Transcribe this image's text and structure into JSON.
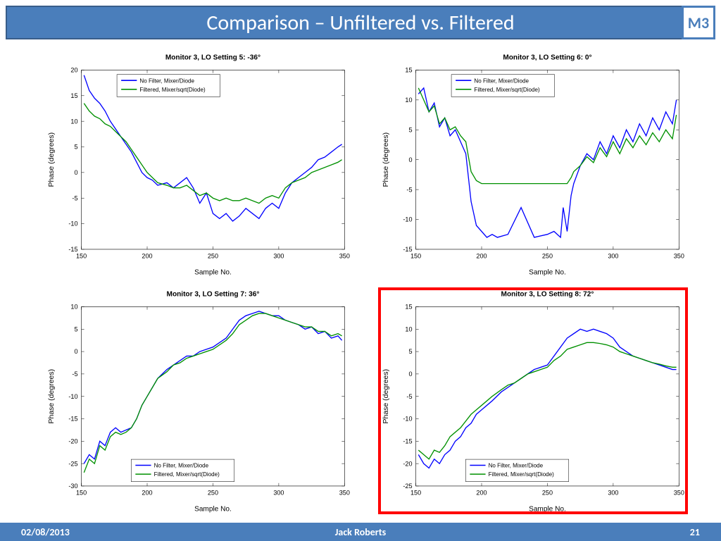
{
  "slide": {
    "title": "Comparison – Unfiltered vs. Filtered",
    "badge": "M3",
    "date": "02/08/2013",
    "author": "Jack Roberts",
    "page": "21"
  },
  "colors": {
    "header_bg": "#4a7ebb",
    "header_border": "#385d8a",
    "series_nofilter": "#0000ff",
    "series_filtered": "#009000",
    "highlight": "#ff0000",
    "axis": "#000000",
    "plot_bg": "#ffffff"
  },
  "common": {
    "xlabel": "Sample No.",
    "ylabel": "Phase (degrees)",
    "xlim": [
      150,
      350
    ],
    "xticks": [
      150,
      200,
      250,
      300,
      350
    ],
    "legend": [
      "No Filter, Mixer/Diode",
      "Filtered, Mixer/sqrt(Diode)"
    ],
    "line_width": 1.3,
    "title_fontsize": 10,
    "label_fontsize": 10,
    "tick_fontsize": 9,
    "legend_fontsize": 8
  },
  "panels": [
    {
      "title": "Monitor 3, LO Setting 5: -36°",
      "ylim": [
        -15,
        20
      ],
      "yticks": [
        -15,
        -10,
        -5,
        0,
        5,
        10,
        15,
        20
      ],
      "legend_pos": "top",
      "highlight": false,
      "series": [
        {
          "color": "#0000ff",
          "x": [
            152,
            156,
            160,
            164,
            168,
            172,
            176,
            180,
            184,
            188,
            192,
            196,
            200,
            204,
            208,
            215,
            220,
            225,
            230,
            235,
            240,
            245,
            250,
            255,
            260,
            265,
            270,
            275,
            280,
            285,
            290,
            295,
            300,
            305,
            310,
            315,
            320,
            325,
            330,
            335,
            340,
            345,
            348
          ],
          "y": [
            19,
            16,
            14.5,
            13.5,
            12,
            10,
            8.5,
            7,
            5.5,
            4,
            2,
            0,
            -1,
            -1.5,
            -2.5,
            -2,
            -3,
            -2,
            -1,
            -3,
            -6,
            -4,
            -8,
            -9,
            -8,
            -9.5,
            -8.5,
            -7,
            -8,
            -9,
            -7,
            -6,
            -7,
            -4,
            -2,
            -1,
            0,
            1,
            2.5,
            3,
            4,
            5,
            5.5
          ]
        },
        {
          "color": "#009000",
          "x": [
            152,
            156,
            160,
            164,
            168,
            172,
            176,
            180,
            184,
            188,
            192,
            196,
            200,
            204,
            208,
            215,
            220,
            225,
            230,
            235,
            240,
            245,
            250,
            255,
            260,
            265,
            270,
            275,
            280,
            285,
            290,
            295,
            300,
            305,
            310,
            315,
            320,
            325,
            330,
            335,
            340,
            345,
            348
          ],
          "y": [
            13.5,
            12,
            11,
            10.5,
            9.5,
            9,
            8,
            7,
            6,
            4.5,
            3,
            1.5,
            0,
            -1,
            -2,
            -2.5,
            -3,
            -3,
            -2.5,
            -3.5,
            -4.5,
            -4,
            -5,
            -5.5,
            -5,
            -5.5,
            -5.5,
            -5,
            -5.5,
            -6,
            -5,
            -4.5,
            -5,
            -3,
            -2,
            -1.5,
            -1,
            0,
            0.5,
            1,
            1.5,
            2,
            2.5
          ]
        }
      ]
    },
    {
      "title": "Monitor 3, LO Setting 6: 0°",
      "ylim": [
        -15,
        15
      ],
      "yticks": [
        -15,
        -10,
        -5,
        0,
        5,
        10,
        15
      ],
      "legend_pos": "top",
      "highlight": false,
      "series": [
        {
          "color": "#0000ff",
          "x": [
            152,
            156,
            160,
            164,
            168,
            172,
            176,
            180,
            184,
            188,
            192,
            196,
            200,
            204,
            208,
            212,
            220,
            230,
            240,
            250,
            255,
            260,
            262,
            265,
            268,
            270,
            275,
            280,
            285,
            290,
            295,
            300,
            305,
            310,
            315,
            320,
            325,
            330,
            335,
            340,
            345,
            348
          ],
          "y": [
            11,
            12,
            8,
            9.5,
            5.5,
            7,
            4,
            5,
            3,
            1,
            -7,
            -11,
            -12,
            -13,
            -12.5,
            -13,
            -12.5,
            -8,
            -13,
            -12.5,
            -12,
            -13,
            -8,
            -12,
            -6,
            -4,
            -1,
            1,
            0,
            3,
            1,
            4,
            2,
            5,
            3,
            6,
            4,
            7,
            5,
            8,
            6,
            10
          ]
        },
        {
          "color": "#009000",
          "x": [
            152,
            156,
            160,
            164,
            168,
            172,
            176,
            180,
            184,
            188,
            192,
            196,
            200,
            204,
            208,
            212,
            220,
            230,
            240,
            250,
            260,
            265,
            268,
            270,
            275,
            280,
            285,
            290,
            295,
            300,
            305,
            310,
            315,
            320,
            325,
            330,
            335,
            340,
            345,
            348
          ],
          "y": [
            12,
            10,
            8,
            9,
            6,
            7,
            5,
            5.5,
            4,
            3,
            -2,
            -3.5,
            -4,
            -4,
            -4,
            -4,
            -4,
            -4,
            -4,
            -4,
            -4,
            -4,
            -3,
            -2,
            -1,
            0.5,
            -0.5,
            2,
            0.5,
            3,
            1,
            3.5,
            2,
            4,
            2.5,
            4.5,
            3,
            5,
            3.5,
            7.5
          ]
        }
      ]
    },
    {
      "title": "Monitor 3, LO Setting 7: 36°",
      "ylim": [
        -30,
        10
      ],
      "yticks": [
        -30,
        -25,
        -20,
        -15,
        -10,
        -5,
        0,
        5,
        10
      ],
      "legend_pos": "bottom",
      "highlight": false,
      "series": [
        {
          "color": "#0000ff",
          "x": [
            152,
            156,
            160,
            164,
            168,
            172,
            176,
            180,
            184,
            188,
            192,
            196,
            200,
            204,
            208,
            215,
            220,
            225,
            230,
            235,
            240,
            245,
            250,
            255,
            260,
            265,
            270,
            275,
            280,
            285,
            290,
            295,
            300,
            305,
            310,
            315,
            320,
            325,
            330,
            335,
            340,
            345,
            348
          ],
          "y": [
            -25,
            -23,
            -24,
            -20,
            -21,
            -18,
            -17,
            -18,
            -17.5,
            -17,
            -15,
            -12,
            -10,
            -8,
            -6,
            -4,
            -3,
            -2,
            -1,
            -1,
            0,
            0.5,
            1,
            2,
            3,
            5,
            7,
            8,
            8.5,
            9,
            8.5,
            8,
            8,
            7,
            6.5,
            6,
            5,
            5.5,
            4,
            4.5,
            3,
            3.5,
            2.5
          ]
        },
        {
          "color": "#009000",
          "x": [
            152,
            156,
            160,
            164,
            168,
            172,
            176,
            180,
            184,
            188,
            192,
            196,
            200,
            204,
            208,
            215,
            220,
            225,
            230,
            235,
            240,
            245,
            250,
            255,
            260,
            265,
            270,
            275,
            280,
            285,
            290,
            295,
            300,
            305,
            310,
            315,
            320,
            325,
            330,
            335,
            340,
            345,
            348
          ],
          "y": [
            -27,
            -24,
            -25,
            -21,
            -22,
            -19,
            -18,
            -18.5,
            -18,
            -17,
            -15,
            -12,
            -10,
            -8,
            -6,
            -4.5,
            -3,
            -2.5,
            -1.5,
            -1,
            -0.5,
            0,
            0.5,
            1.5,
            2.5,
            4,
            6,
            7,
            8,
            8.5,
            8.5,
            8,
            7.5,
            7,
            6.5,
            6,
            5.5,
            5.5,
            4.5,
            4.5,
            3.5,
            4,
            3.5
          ]
        }
      ]
    },
    {
      "title": "Monitor 3, LO Setting 8: 72°",
      "ylim": [
        -25,
        15
      ],
      "yticks": [
        -25,
        -20,
        -15,
        -10,
        -5,
        0,
        5,
        10,
        15
      ],
      "legend_pos": "bottom",
      "highlight": true,
      "series": [
        {
          "color": "#0000ff",
          "x": [
            152,
            156,
            160,
            164,
            168,
            172,
            176,
            180,
            184,
            188,
            192,
            196,
            200,
            204,
            208,
            215,
            220,
            225,
            230,
            235,
            240,
            245,
            250,
            255,
            260,
            265,
            270,
            275,
            280,
            285,
            290,
            295,
            300,
            305,
            310,
            315,
            320,
            325,
            330,
            335,
            340,
            345,
            348
          ],
          "y": [
            -18,
            -20,
            -21,
            -19,
            -20,
            -18,
            -17,
            -15,
            -14,
            -12,
            -11,
            -9,
            -8,
            -7,
            -6,
            -4,
            -3,
            -2,
            -1,
            0,
            1,
            1.5,
            2,
            4,
            6,
            8,
            9,
            10,
            9.5,
            10,
            9.5,
            9,
            8,
            6,
            5,
            4,
            3.5,
            3,
            2.5,
            2,
            1.5,
            1,
            1
          ]
        },
        {
          "color": "#009000",
          "x": [
            152,
            156,
            160,
            164,
            168,
            172,
            176,
            180,
            184,
            188,
            192,
            196,
            200,
            204,
            208,
            215,
            220,
            225,
            230,
            235,
            240,
            245,
            250,
            255,
            260,
            265,
            270,
            275,
            280,
            285,
            290,
            295,
            300,
            305,
            310,
            315,
            320,
            325,
            330,
            335,
            340,
            345,
            348
          ],
          "y": [
            -17,
            -18,
            -19,
            -17,
            -17.5,
            -16,
            -14,
            -13,
            -12,
            -10.5,
            -9,
            -8,
            -7,
            -6,
            -5,
            -3.5,
            -2.5,
            -2,
            -1,
            0,
            0.5,
            1,
            1.5,
            3,
            4,
            5.5,
            6,
            6.5,
            7,
            7,
            6.8,
            6.5,
            6,
            5,
            4.5,
            4,
            3.5,
            3,
            2.5,
            2.2,
            1.8,
            1.5,
            1.5
          ]
        }
      ]
    }
  ]
}
